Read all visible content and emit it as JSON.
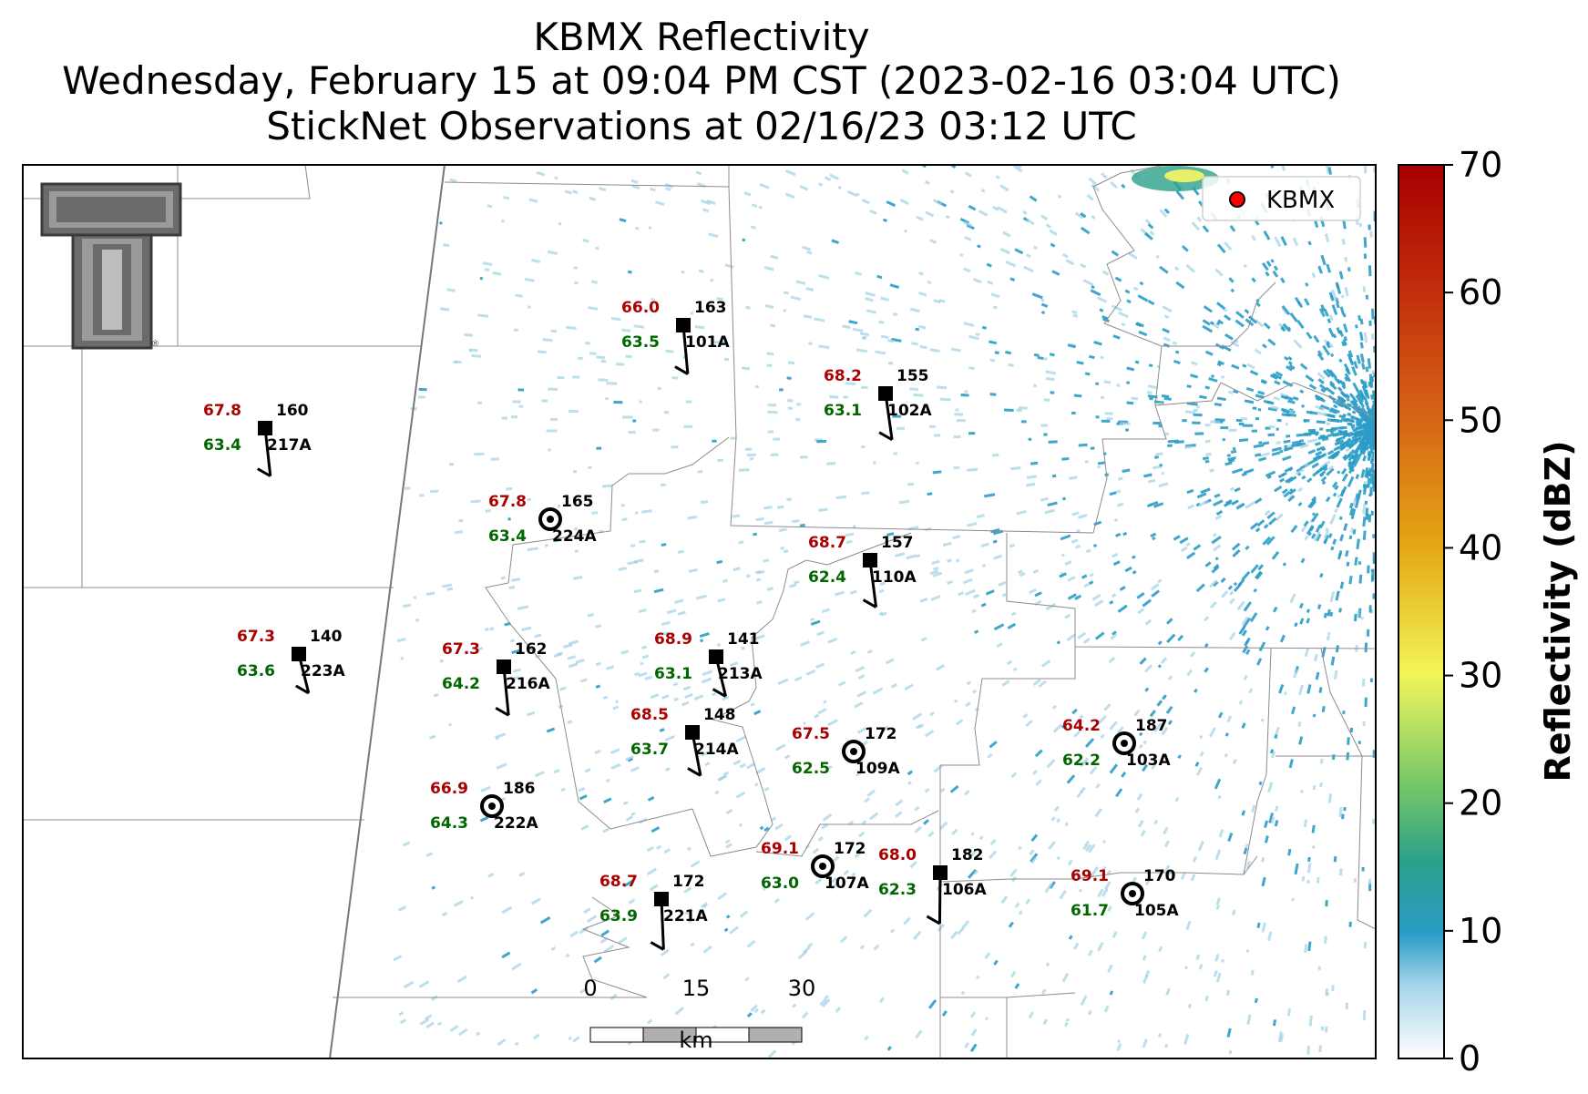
{
  "titles": {
    "line1": "KBMX Reflectivity",
    "line2": "Wednesday, February 15 at 09:04 PM CST (2023-02-16 03:04 UTC)",
    "line3": "StickNet Observations at 02/16/23 03:12 UTC"
  },
  "legend": {
    "label": "KBMX",
    "marker_color": "#ff0000"
  },
  "colorbar": {
    "label": "Reflectivity (dBZ)",
    "ticks": [
      "0",
      "10",
      "20",
      "30",
      "40",
      "50",
      "60",
      "70"
    ],
    "range": [
      0,
      70
    ]
  },
  "scalebar": {
    "ticks": [
      "0",
      "15",
      "30"
    ],
    "unit": "km"
  },
  "logo": {
    "name": "texas-tech-double-t-logo"
  },
  "stations": [
    {
      "id": "101A",
      "temp": "66.0",
      "dew": "63.5",
      "dir": "163",
      "marker": "square"
    },
    {
      "id": "102A",
      "temp": "68.2",
      "dew": "63.1",
      "dir": "155",
      "marker": "square"
    },
    {
      "id": "217A",
      "temp": "67.8",
      "dew": "63.4",
      "dir": "160",
      "marker": "square"
    },
    {
      "id": "224A",
      "temp": "67.8",
      "dew": "63.4",
      "dir": "165",
      "marker": "circle"
    },
    {
      "id": "110A",
      "temp": "68.7",
      "dew": "62.4",
      "dir": "157",
      "marker": "square"
    },
    {
      "id": "223A",
      "temp": "67.3",
      "dew": "63.6",
      "dir": "140",
      "marker": "square"
    },
    {
      "id": "216A",
      "temp": "67.3",
      "dew": "64.2",
      "dir": "162",
      "marker": "square"
    },
    {
      "id": "213A",
      "temp": "68.9",
      "dew": "63.1",
      "dir": "141",
      "marker": "square"
    },
    {
      "id": "214A",
      "temp": "68.5",
      "dew": "63.7",
      "dir": "148",
      "marker": "square"
    },
    {
      "id": "109A",
      "temp": "67.5",
      "dew": "62.5",
      "dir": "172",
      "marker": "circle"
    },
    {
      "id": "103A",
      "temp": "64.2",
      "dew": "62.2",
      "dir": "187",
      "marker": "circle"
    },
    {
      "id": "222A",
      "temp": "66.9",
      "dew": "64.3",
      "dir": "186",
      "marker": "circle"
    },
    {
      "id": "107A",
      "temp": "69.1",
      "dew": "63.0",
      "dir": "172",
      "marker": "circle"
    },
    {
      "id": "106A",
      "temp": "68.0",
      "dew": "62.3",
      "dir": "182",
      "marker": "square"
    },
    {
      "id": "221A",
      "temp": "68.7",
      "dew": "63.9",
      "dir": "172",
      "marker": "square"
    },
    {
      "id": "105A",
      "temp": "69.1",
      "dew": "61.7",
      "dir": "170",
      "marker": "circle"
    }
  ]
}
